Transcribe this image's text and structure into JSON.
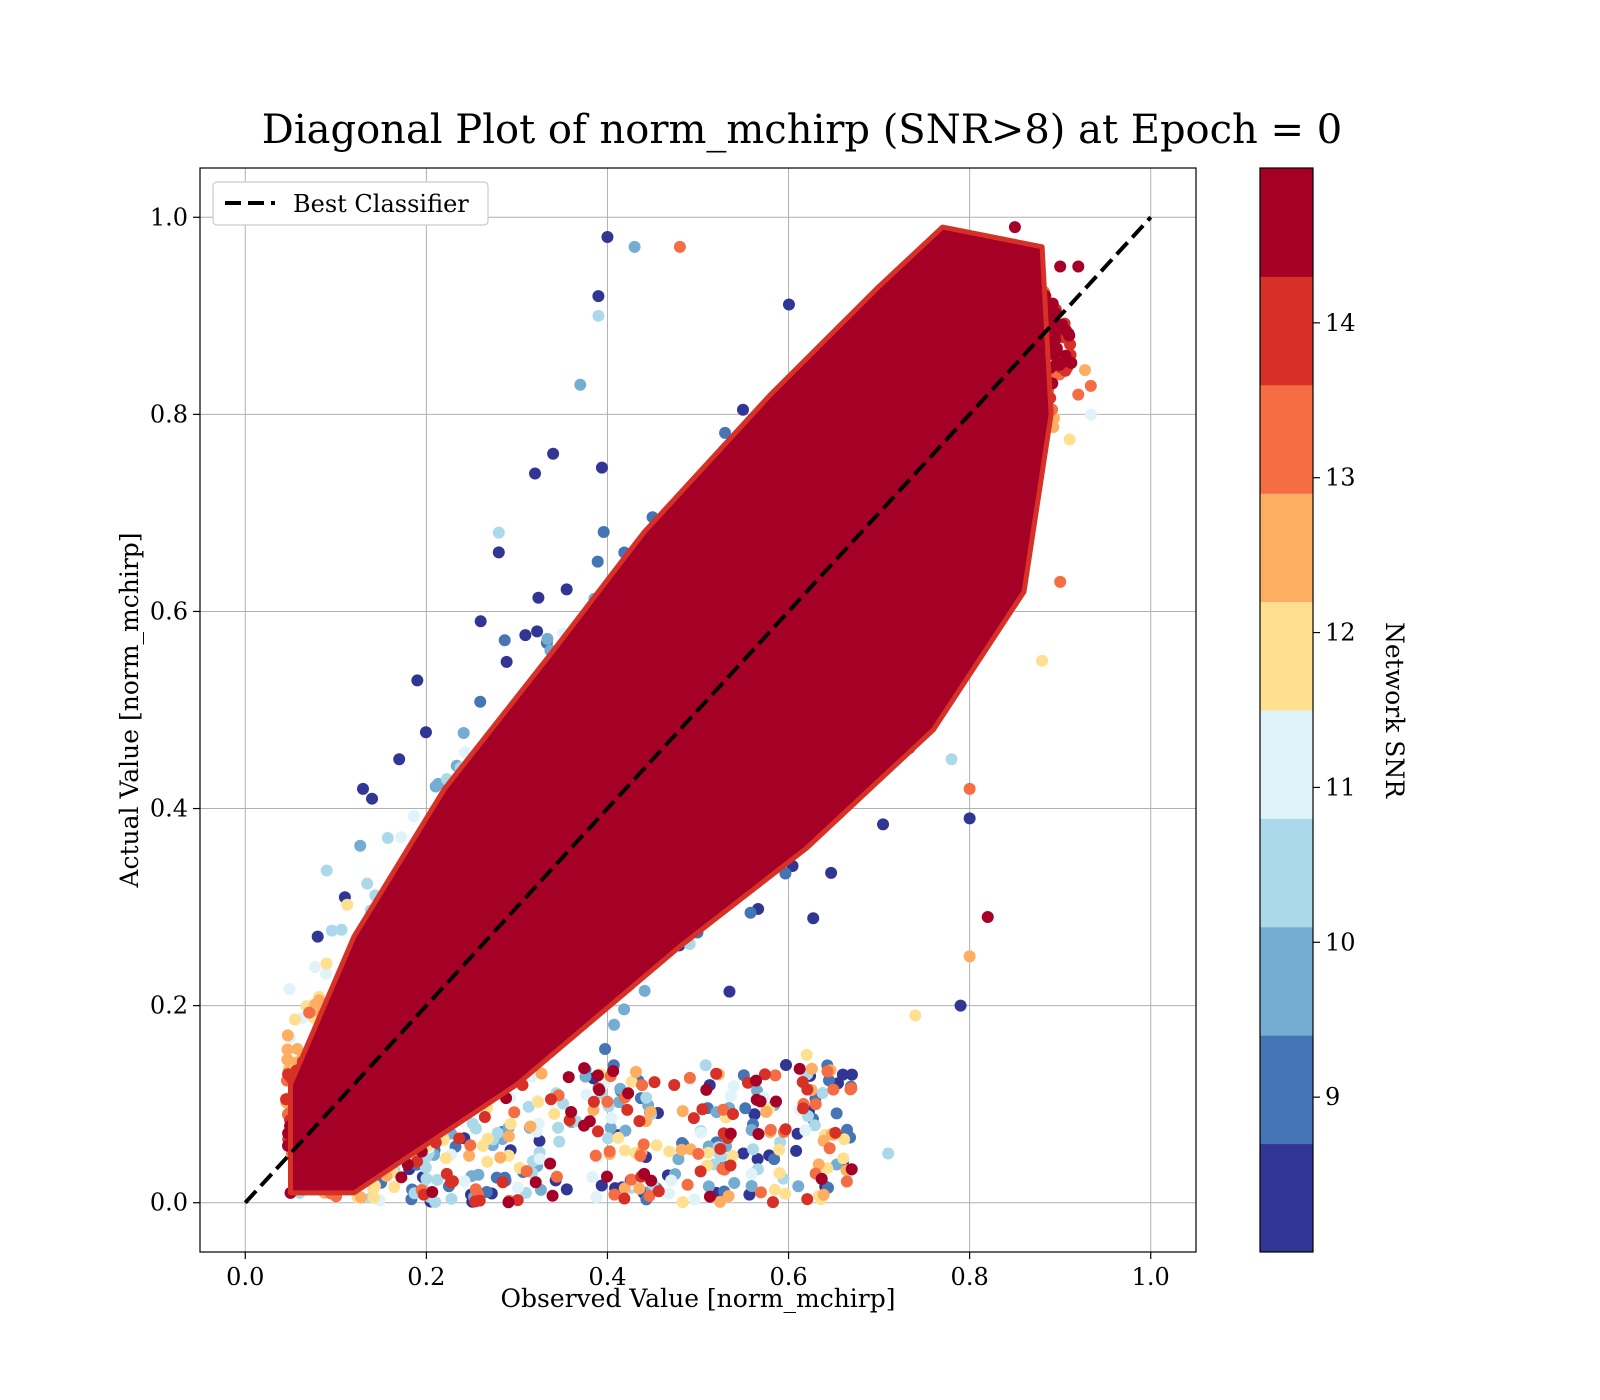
{
  "chart_data": {
    "type": "scatter",
    "title": "Diagonal Plot of norm_mchirp (SNR>8) at Epoch = 0",
    "xlabel": "Observed Value [norm_mchirp]",
    "ylabel": "Actual Value [norm_mchirp]",
    "xlim": [
      -0.05,
      1.05
    ],
    "ylim": [
      -0.05,
      1.05
    ],
    "x_ticks": [
      "0.0",
      "0.2",
      "0.4",
      "0.6",
      "0.8",
      "1.0"
    ],
    "y_ticks": [
      "0.0",
      "0.2",
      "0.4",
      "0.6",
      "0.8",
      "1.0"
    ],
    "grid": true,
    "legend": {
      "position": "upper-left",
      "entries": [
        "Best Classifier"
      ]
    },
    "reference_line": {
      "name": "Best Classifier",
      "style": "dashed",
      "color": "#000000",
      "x": [
        0.0,
        1.0
      ],
      "y": [
        0.0,
        1.0
      ]
    },
    "colorbar": {
      "label": "Network SNR",
      "range": [
        8,
        15
      ],
      "tick_labels": [
        "9",
        "10",
        "11",
        "12",
        "13",
        "14"
      ],
      "tick_values": [
        9,
        10,
        11,
        12,
        13,
        14
      ],
      "colors": [
        "#313695",
        "#4575b4",
        "#74add1",
        "#abd9e9",
        "#e0f3f8",
        "#fee090",
        "#fdae61",
        "#f46d43",
        "#d73027",
        "#a50026"
      ]
    },
    "series": [
      {
        "values": [
          {
            "x": 0.05,
            "y": 0.01,
            "snr": 15
          },
          {
            "x": 0.1,
            "y": 0.1,
            "snr": 15
          },
          {
            "x": 0.2,
            "y": 0.2,
            "snr": 15
          },
          {
            "x": 0.3,
            "y": 0.3,
            "snr": 15
          },
          {
            "x": 0.4,
            "y": 0.4,
            "snr": 15
          },
          {
            "x": 0.5,
            "y": 0.5,
            "snr": 15
          },
          {
            "x": 0.6,
            "y": 0.6,
            "snr": 15
          },
          {
            "x": 0.7,
            "y": 0.7,
            "snr": 15
          },
          {
            "x": 0.8,
            "y": 0.8,
            "snr": 15
          },
          {
            "x": 0.9,
            "y": 0.95,
            "snr": 15
          },
          {
            "x": 0.85,
            "y": 0.99,
            "snr": 15
          },
          {
            "x": 0.4,
            "y": 0.98,
            "snr": 8.5
          },
          {
            "x": 0.43,
            "y": 0.97,
            "snr": 9.5
          },
          {
            "x": 0.48,
            "y": 0.97,
            "snr": 13.5
          },
          {
            "x": 0.39,
            "y": 0.92,
            "snr": 8.5
          },
          {
            "x": 0.39,
            "y": 0.9,
            "snr": 10.5
          },
          {
            "x": 0.37,
            "y": 0.83,
            "snr": 9.5
          },
          {
            "x": 0.34,
            "y": 0.76,
            "snr": 8.5
          },
          {
            "x": 0.32,
            "y": 0.74,
            "snr": 8.5
          },
          {
            "x": 0.28,
            "y": 0.68,
            "snr": 10.5
          },
          {
            "x": 0.28,
            "y": 0.66,
            "snr": 8.5
          },
          {
            "x": 0.26,
            "y": 0.59,
            "snr": 8.5
          },
          {
            "x": 0.19,
            "y": 0.53,
            "snr": 8.5
          },
          {
            "x": 0.17,
            "y": 0.45,
            "snr": 8.5
          },
          {
            "x": 0.13,
            "y": 0.42,
            "snr": 8.5
          },
          {
            "x": 0.14,
            "y": 0.41,
            "snr": 8.5
          },
          {
            "x": 0.11,
            "y": 0.31,
            "snr": 8.5
          },
          {
            "x": 0.08,
            "y": 0.27,
            "snr": 8.5
          },
          {
            "x": 0.06,
            "y": 0.12,
            "snr": 9.5
          },
          {
            "x": 0.79,
            "y": 0.2,
            "snr": 8.5
          },
          {
            "x": 0.74,
            "y": 0.19,
            "snr": 11.5
          },
          {
            "x": 0.8,
            "y": 0.25,
            "snr": 12.5
          },
          {
            "x": 0.82,
            "y": 0.29,
            "snr": 14.5
          },
          {
            "x": 0.8,
            "y": 0.39,
            "snr": 8.5
          },
          {
            "x": 0.8,
            "y": 0.42,
            "snr": 13.5
          },
          {
            "x": 0.78,
            "y": 0.45,
            "snr": 10.5
          },
          {
            "x": 0.88,
            "y": 0.55,
            "snr": 11.5
          },
          {
            "x": 0.9,
            "y": 0.63,
            "snr": 13.5
          },
          {
            "x": 0.92,
            "y": 0.82,
            "snr": 13.5
          },
          {
            "x": 0.91,
            "y": 0.88,
            "snr": 14.5
          },
          {
            "x": 0.92,
            "y": 0.95,
            "snr": 14.5
          },
          {
            "x": 0.71,
            "y": 0.05,
            "snr": 10.5
          },
          {
            "x": 0.66,
            "y": 0.04,
            "snr": 8.5
          },
          {
            "x": 0.54,
            "y": 0.02,
            "snr": 9.5
          },
          {
            "x": 0.52,
            "y": 0.01,
            "snr": 8.5
          },
          {
            "x": 0.44,
            "y": 0.01,
            "snr": 8.5
          },
          {
            "x": 0.31,
            "y": 0.01,
            "snr": 10.5
          },
          {
            "x": 0.06,
            "y": 0.01,
            "snr": 10.5
          },
          {
            "x": 0.66,
            "y": 0.13,
            "snr": 8.5
          },
          {
            "x": 0.67,
            "y": 0.13,
            "snr": 8.5
          },
          {
            "x": 0.63,
            "y": 0.1,
            "snr": 13.5
          },
          {
            "x": 0.61,
            "y": 0.07,
            "snr": 8.5
          },
          {
            "x": 0.59,
            "y": 0.03,
            "snr": 11.5
          },
          {
            "x": 0.55,
            "y": 0.05,
            "snr": 8.5
          },
          {
            "x": 0.62,
            "y": 0.15,
            "snr": 11.5
          }
        ]
      }
    ]
  }
}
